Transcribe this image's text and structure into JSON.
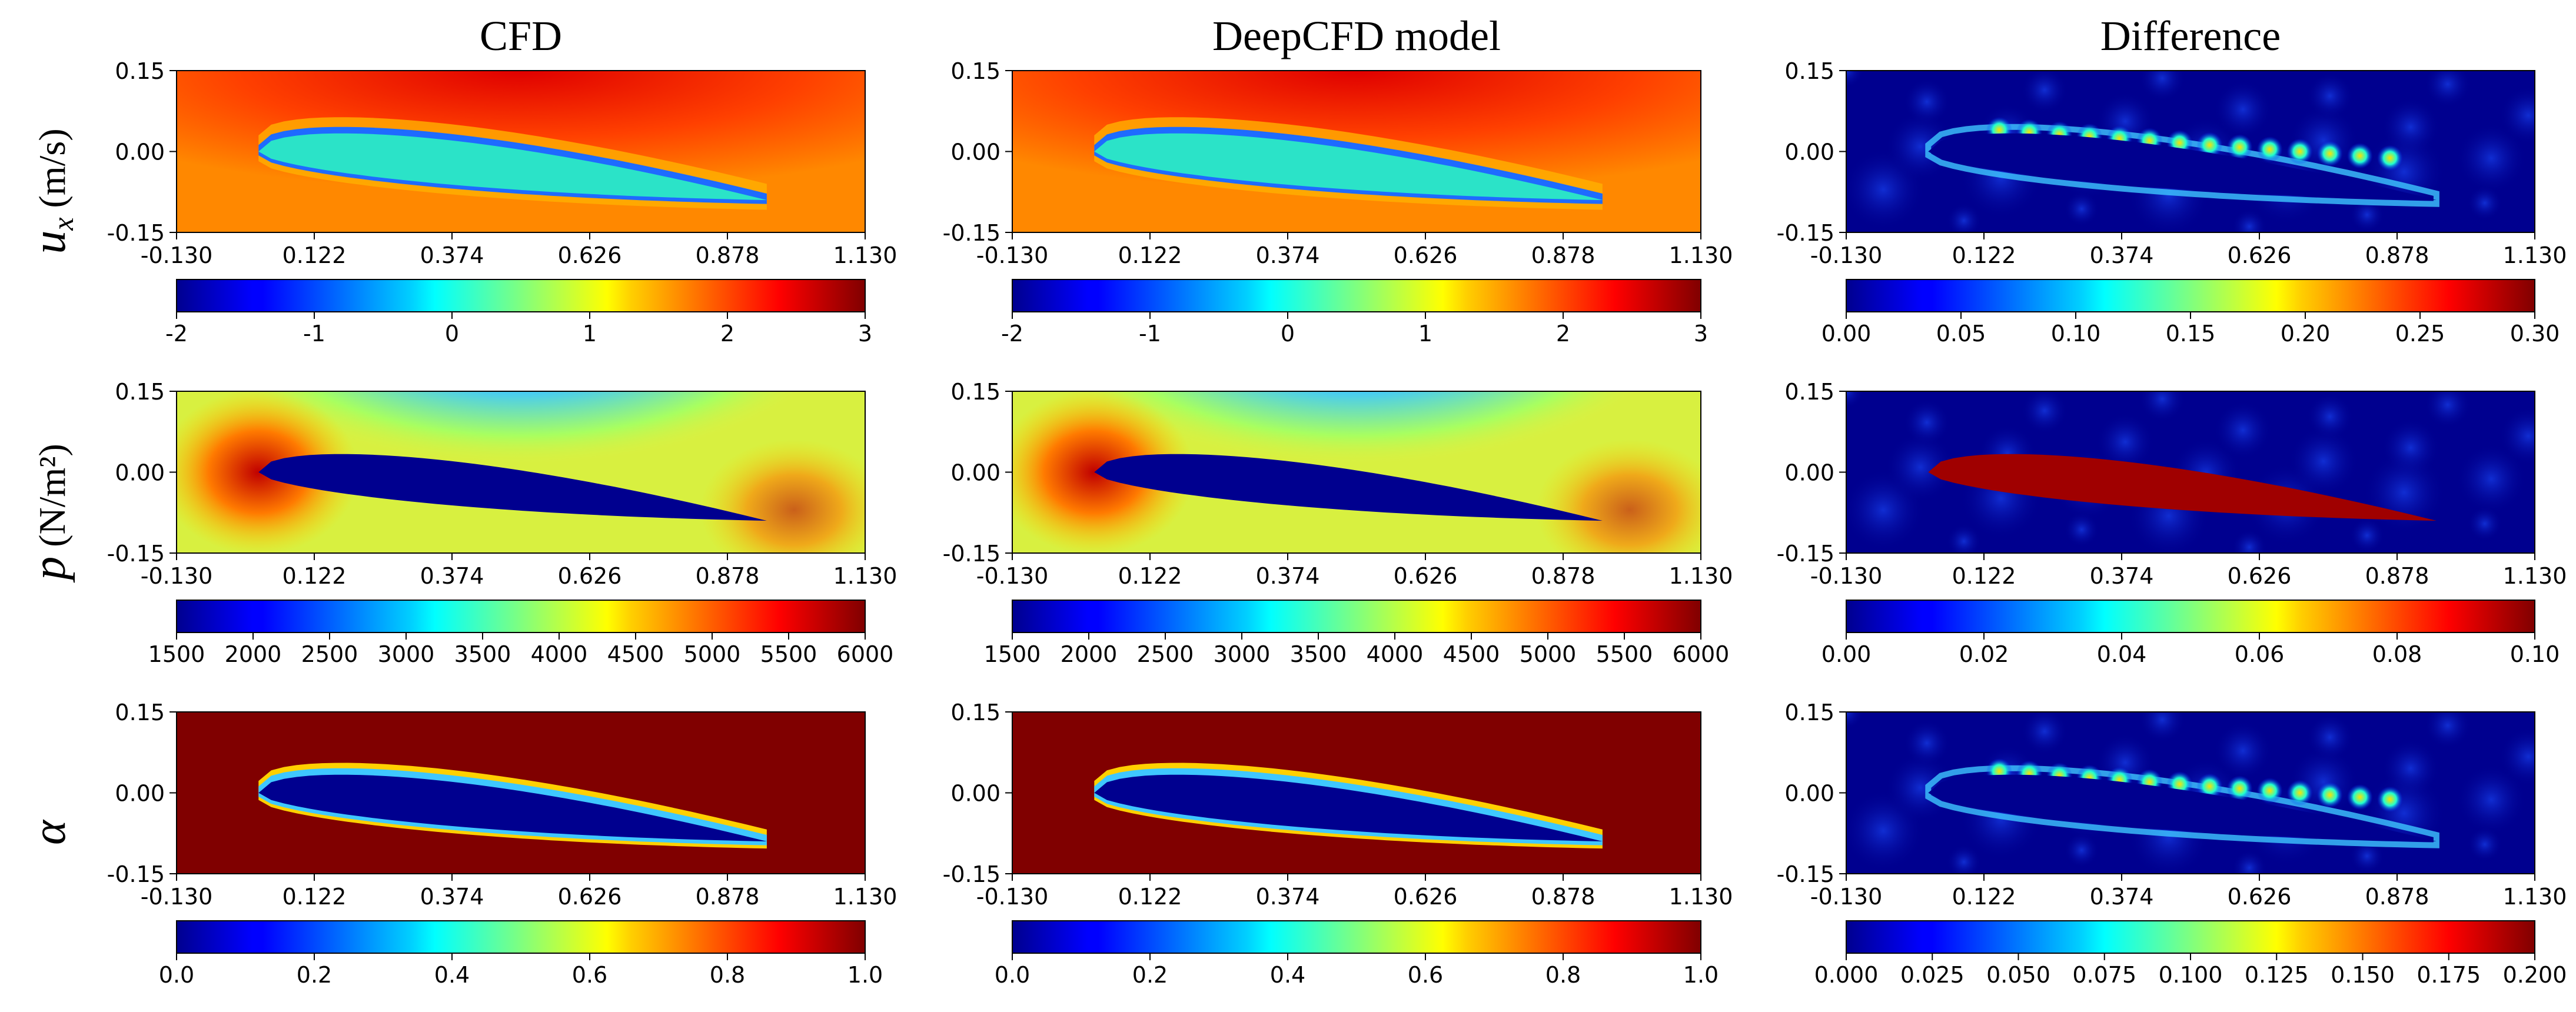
{
  "figure": {
    "column_titles": [
      "CFD",
      "DeepCFD model",
      "Difference"
    ],
    "row_labels": [
      {
        "symbol": "u",
        "subscript": "x",
        "units": "(m/s)"
      },
      {
        "symbol": "p",
        "subscript": "",
        "units": "(N/m²)"
      },
      {
        "symbol": "α",
        "subscript": "",
        "units": ""
      }
    ]
  },
  "chart_data": [
    {
      "type": "heatmap",
      "field": "u_x",
      "panel": "CFD",
      "x_ticks": [
        "-0.130",
        "0.122",
        "0.374",
        "0.626",
        "0.878",
        "1.130"
      ],
      "y_ticks": [
        "0.15",
        "0.00",
        "-0.15"
      ],
      "xlim": [
        -0.13,
        1.13
      ],
      "ylim": [
        -0.15,
        0.15
      ],
      "colorbar": {
        "ticks": [
          "-2",
          "-1",
          "0",
          "1",
          "2",
          "3"
        ],
        "range": [
          -2,
          3
        ]
      }
    },
    {
      "type": "heatmap",
      "field": "u_x",
      "panel": "DeepCFD model",
      "x_ticks": [
        "-0.130",
        "0.122",
        "0.374",
        "0.626",
        "0.878",
        "1.130"
      ],
      "y_ticks": [
        "0.15",
        "0.00",
        "-0.15"
      ],
      "xlim": [
        -0.13,
        1.13
      ],
      "ylim": [
        -0.15,
        0.15
      ],
      "colorbar": {
        "ticks": [
          "-2",
          "-1",
          "0",
          "1",
          "2",
          "3"
        ],
        "range": [
          -2,
          3
        ]
      }
    },
    {
      "type": "heatmap",
      "field": "u_x",
      "panel": "Difference",
      "x_ticks": [
        "-0.130",
        "0.122",
        "0.374",
        "0.626",
        "0.878",
        "1.130"
      ],
      "y_ticks": [
        "0.15",
        "0.00",
        "-0.15"
      ],
      "xlim": [
        -0.13,
        1.13
      ],
      "ylim": [
        -0.15,
        0.15
      ],
      "colorbar": {
        "ticks": [
          "0.00",
          "0.05",
          "0.10",
          "0.15",
          "0.20",
          "0.25",
          "0.30"
        ],
        "range": [
          0,
          0.3
        ]
      }
    },
    {
      "type": "heatmap",
      "field": "p",
      "panel": "CFD",
      "x_ticks": [
        "-0.130",
        "0.122",
        "0.374",
        "0.626",
        "0.878",
        "1.130"
      ],
      "y_ticks": [
        "0.15",
        "0.00",
        "-0.15"
      ],
      "xlim": [
        -0.13,
        1.13
      ],
      "ylim": [
        -0.15,
        0.15
      ],
      "colorbar": {
        "ticks": [
          "1500",
          "2000",
          "2500",
          "3000",
          "3500",
          "4000",
          "4500",
          "5000",
          "5500",
          "6000"
        ],
        "range": [
          1500,
          6000
        ]
      }
    },
    {
      "type": "heatmap",
      "field": "p",
      "panel": "DeepCFD model",
      "x_ticks": [
        "-0.130",
        "0.122",
        "0.374",
        "0.626",
        "0.878",
        "1.130"
      ],
      "y_ticks": [
        "0.15",
        "0.00",
        "-0.15"
      ],
      "xlim": [
        -0.13,
        1.13
      ],
      "ylim": [
        -0.15,
        0.15
      ],
      "colorbar": {
        "ticks": [
          "1500",
          "2000",
          "2500",
          "3000",
          "3500",
          "4000",
          "4500",
          "5000",
          "5500",
          "6000"
        ],
        "range": [
          1500,
          6000
        ]
      }
    },
    {
      "type": "heatmap",
      "field": "p",
      "panel": "Difference",
      "x_ticks": [
        "-0.130",
        "0.122",
        "0.374",
        "0.626",
        "0.878",
        "1.130"
      ],
      "y_ticks": [
        "0.15",
        "0.00",
        "-0.15"
      ],
      "xlim": [
        -0.13,
        1.13
      ],
      "ylim": [
        -0.15,
        0.15
      ],
      "colorbar": {
        "ticks": [
          "0.00",
          "0.02",
          "0.04",
          "0.06",
          "0.08",
          "0.10"
        ],
        "range": [
          0,
          0.1
        ]
      }
    },
    {
      "type": "heatmap",
      "field": "alpha",
      "panel": "CFD",
      "x_ticks": [
        "-0.130",
        "0.122",
        "0.374",
        "0.626",
        "0.878",
        "1.130"
      ],
      "y_ticks": [
        "0.15",
        "0.00",
        "-0.15"
      ],
      "xlim": [
        -0.13,
        1.13
      ],
      "ylim": [
        -0.15,
        0.15
      ],
      "colorbar": {
        "ticks": [
          "0.0",
          "0.2",
          "0.4",
          "0.6",
          "0.8",
          "1.0"
        ],
        "range": [
          0,
          1
        ]
      }
    },
    {
      "type": "heatmap",
      "field": "alpha",
      "panel": "DeepCFD model",
      "x_ticks": [
        "-0.130",
        "0.122",
        "0.374",
        "0.626",
        "0.878",
        "1.130"
      ],
      "y_ticks": [
        "0.15",
        "0.00",
        "-0.15"
      ],
      "xlim": [
        -0.13,
        1.13
      ],
      "ylim": [
        -0.15,
        0.15
      ],
      "colorbar": {
        "ticks": [
          "0.0",
          "0.2",
          "0.4",
          "0.6",
          "0.8",
          "1.0"
        ],
        "range": [
          0,
          1
        ]
      }
    },
    {
      "type": "heatmap",
      "field": "alpha",
      "panel": "Difference",
      "x_ticks": [
        "-0.130",
        "0.122",
        "0.374",
        "0.626",
        "0.878",
        "1.130"
      ],
      "y_ticks": [
        "0.15",
        "0.00",
        "-0.15"
      ],
      "xlim": [
        -0.13,
        1.13
      ],
      "ylim": [
        -0.15,
        0.15
      ],
      "colorbar": {
        "ticks": [
          "0.000",
          "0.025",
          "0.050",
          "0.075",
          "0.100",
          "0.125",
          "0.150",
          "0.175",
          "0.200"
        ],
        "range": [
          0,
          0.2
        ]
      }
    }
  ]
}
